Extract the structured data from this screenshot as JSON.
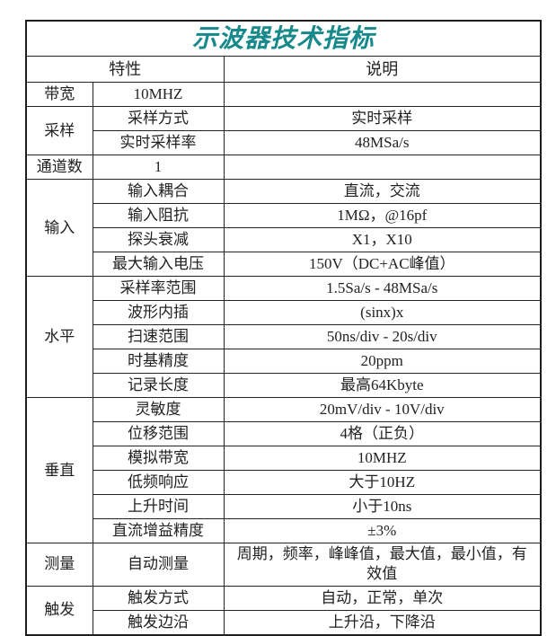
{
  "title": "示波器技术指标",
  "accent_color": "#17898B",
  "header": {
    "feature": "特性",
    "desc": "说明"
  },
  "sections": [
    {
      "category": "带宽",
      "rows": [
        {
          "feature": "10MHZ",
          "desc": ""
        }
      ]
    },
    {
      "category": "采样",
      "rows": [
        {
          "feature": "采样方式",
          "desc": "实时采样"
        },
        {
          "feature": "实时采样率",
          "desc": "48MSa/s"
        }
      ]
    },
    {
      "category": "通道数",
      "rows": [
        {
          "feature": "1",
          "desc": ""
        }
      ]
    },
    {
      "category": "输入",
      "rows": [
        {
          "feature": "输入耦合",
          "desc": "直流，交流"
        },
        {
          "feature": "输入阻抗",
          "desc": "1MΩ，@16pf"
        },
        {
          "feature": "探头衰减",
          "desc": "X1，X10"
        },
        {
          "feature": "最大输入电压",
          "desc": "150V（DC+AC峰值）"
        }
      ]
    },
    {
      "category": "水平",
      "rows": [
        {
          "feature": "采样率范围",
          "desc": "1.5Sa/s - 48MSa/s"
        },
        {
          "feature": "波形内插",
          "desc": "(sinx)x"
        },
        {
          "feature": "扫速范围",
          "desc": "50ns/div - 20s/div"
        },
        {
          "feature": "时基精度",
          "desc": "20ppm"
        },
        {
          "feature": "记录长度",
          "desc": "最高64Kbyte"
        }
      ]
    },
    {
      "category": "垂直",
      "rows": [
        {
          "feature": "灵敏度",
          "desc": "20mV/div - 10V/div"
        },
        {
          "feature": "位移范围",
          "desc": "4格（正负）"
        },
        {
          "feature": "模拟带宽",
          "desc": "10MHZ"
        },
        {
          "feature": "低频响应",
          "desc": "大于10HZ"
        },
        {
          "feature": "上升时间",
          "desc": "小于10ns"
        },
        {
          "feature": "直流增益精度",
          "desc": "±3%"
        }
      ]
    },
    {
      "category": "测量",
      "rows": [
        {
          "feature": "自动测量",
          "desc": "周期，频率，峰峰值，最大值，最小值，有效值"
        }
      ]
    },
    {
      "category": "触发",
      "rows": [
        {
          "feature": "触发方式",
          "desc": "自动，正常，单次"
        },
        {
          "feature": "触发边沿",
          "desc": "上升沿，下降沿"
        }
      ]
    }
  ]
}
